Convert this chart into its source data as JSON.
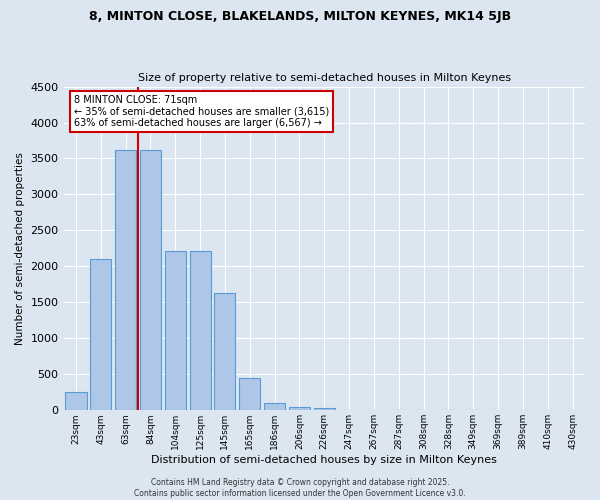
{
  "title": "8, MINTON CLOSE, BLAKELANDS, MILTON KEYNES, MK14 5JB",
  "subtitle": "Size of property relative to semi-detached houses in Milton Keynes",
  "xlabel": "Distribution of semi-detached houses by size in Milton Keynes",
  "ylabel": "Number of semi-detached properties",
  "categories": [
    "23sqm",
    "43sqm",
    "63sqm",
    "84sqm",
    "104sqm",
    "125sqm",
    "145sqm",
    "165sqm",
    "186sqm",
    "206sqm",
    "226sqm",
    "247sqm",
    "267sqm",
    "287sqm",
    "308sqm",
    "328sqm",
    "349sqm",
    "369sqm",
    "389sqm",
    "410sqm",
    "430sqm"
  ],
  "values": [
    250,
    2100,
    3620,
    3620,
    2220,
    2220,
    1630,
    450,
    100,
    50,
    30,
    0,
    0,
    0,
    0,
    0,
    0,
    0,
    0,
    0,
    0
  ],
  "bar_color": "#aec6e8",
  "bar_edge_color": "#5b9bd5",
  "highlight_bar_index": 2,
  "highlight_line_color": "#cc0000",
  "annotation_title": "8 MINTON CLOSE: 71sqm",
  "annotation_line1": "← 35% of semi-detached houses are smaller (3,615)",
  "annotation_line2": "63% of semi-detached houses are larger (6,567) →",
  "annotation_box_color": "#cc0000",
  "ylim": [
    0,
    4500
  ],
  "yticks": [
    0,
    500,
    1000,
    1500,
    2000,
    2500,
    3000,
    3500,
    4000,
    4500
  ],
  "background_color": "#dce6f1",
  "plot_background_color": "#dce6f1",
  "grid_color": "#ffffff",
  "footer_line1": "Contains HM Land Registry data © Crown copyright and database right 2025.",
  "footer_line2": "Contains public sector information licensed under the Open Government Licence v3.0."
}
